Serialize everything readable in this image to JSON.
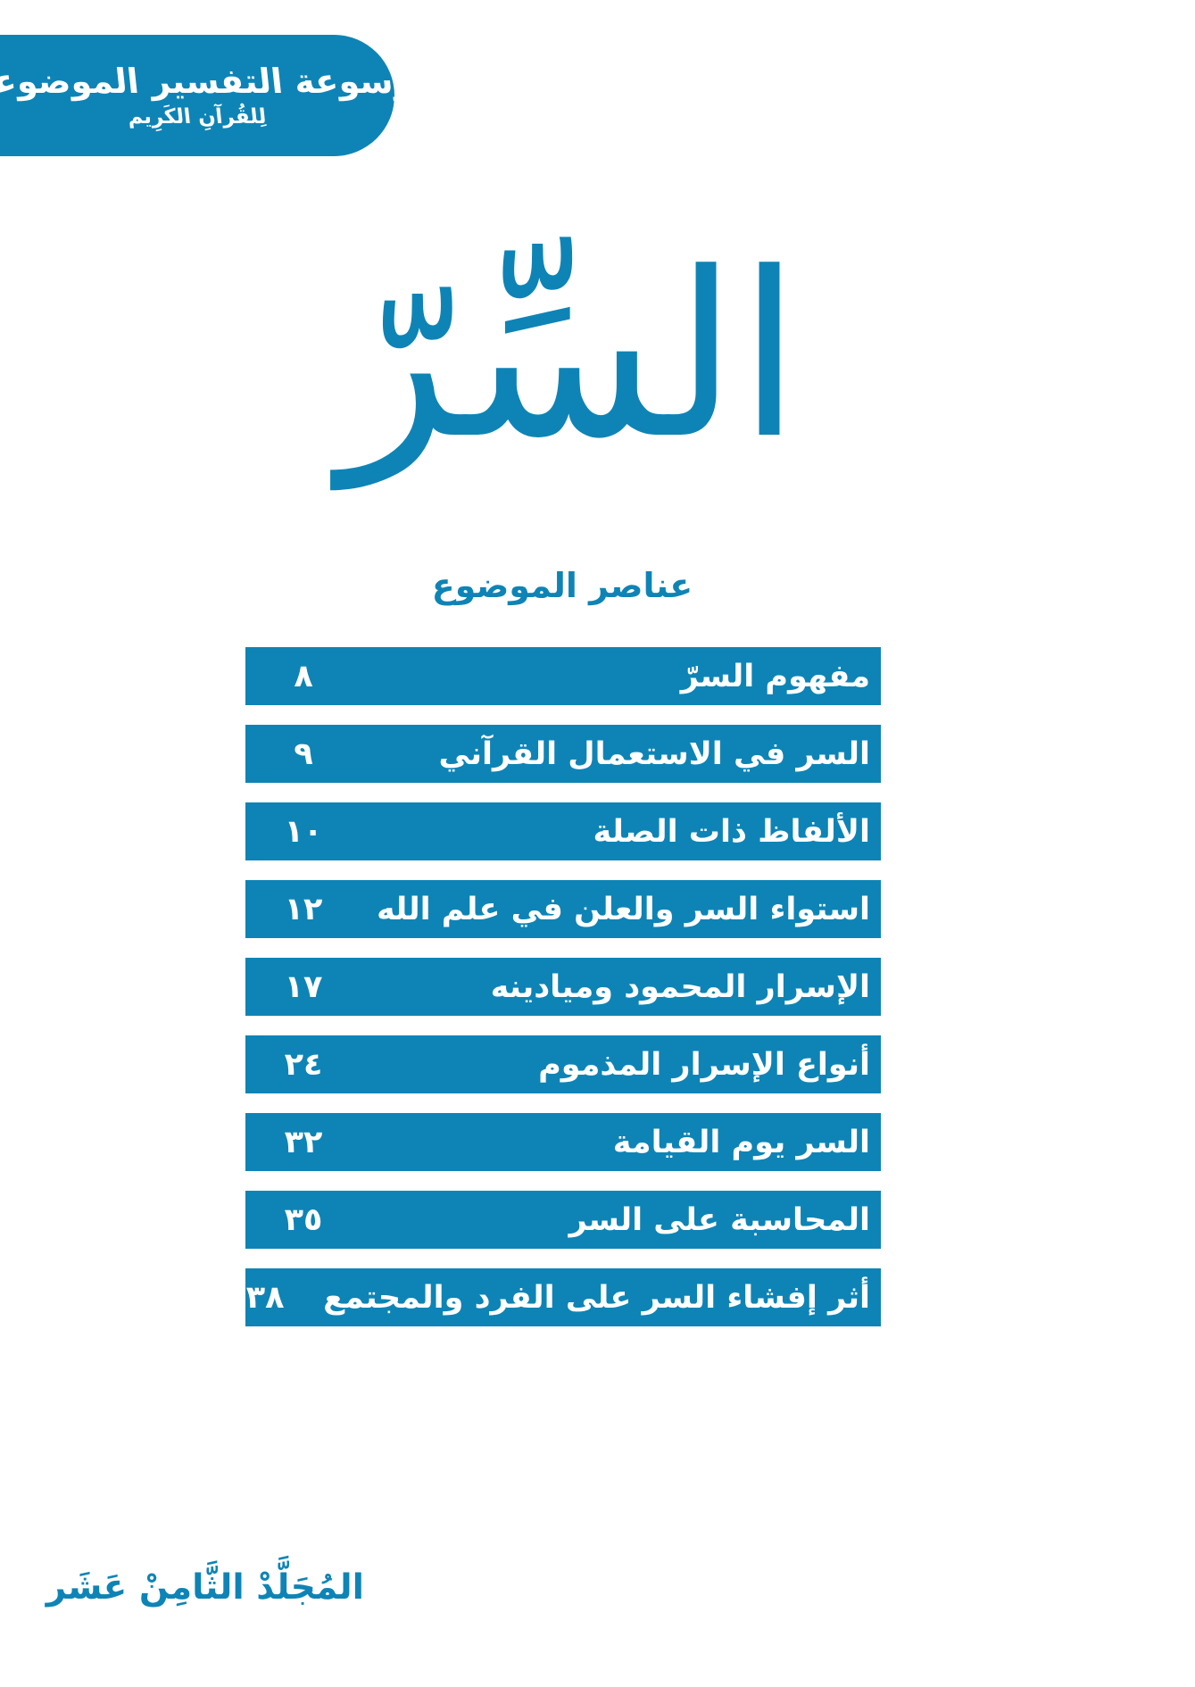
{
  "page": {
    "background": "#ffffff",
    "accent_blue": "#0e84b6",
    "text_on_accent": "#ffffff"
  },
  "header_banner": {
    "title": "موسوعة التفسير الموضوعي",
    "subtitle": "لِلقُرآنِ الكَرِيم"
  },
  "main_title": {
    "text": "السِّرّ"
  },
  "toc": {
    "heading": "عناصر الموضوع",
    "items": [
      {
        "title": "مفهوم السرّ",
        "page": "٨"
      },
      {
        "title": "السر في الاستعمال القرآني",
        "page": "٩"
      },
      {
        "title": "الألفاظ ذات الصلة",
        "page": "١٠"
      },
      {
        "title": "استواء السر والعلن في علم الله",
        "page": "١٢"
      },
      {
        "title": "الإسرار المحمود وميادينه",
        "page": "١٧"
      },
      {
        "title": "أنواع الإسرار المذموم",
        "page": "٢٤"
      },
      {
        "title": "السر يوم القيامة",
        "page": "٣٢"
      },
      {
        "title": "المحاسبة على السر",
        "page": "٣٥"
      },
      {
        "title": "أثر إفشاء السر على الفرد والمجتمع",
        "page": "٣٨"
      }
    ]
  },
  "footer": {
    "volume": "المُجَلَّدْ الثَّامِنْ عَشَر"
  }
}
